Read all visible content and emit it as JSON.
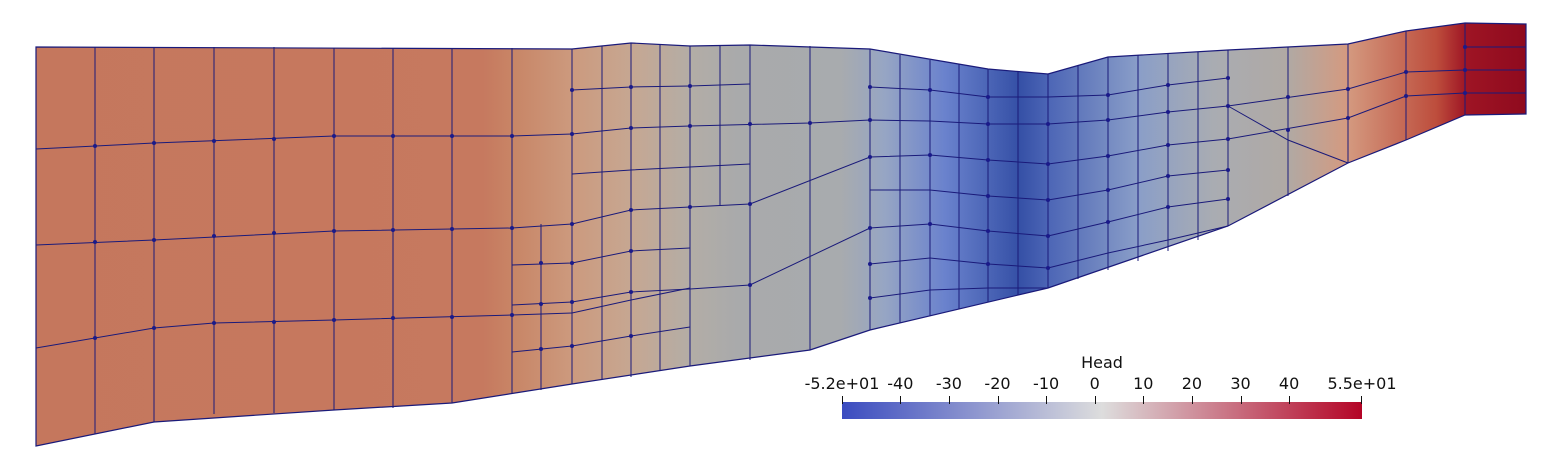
{
  "legend": {
    "title": "Head",
    "range": [
      -52,
      55
    ],
    "colors": [
      "#3b4cc0",
      "#dddddd",
      "#b40426"
    ],
    "ticks": [
      {
        "value": -52,
        "label": "-5.2e+01"
      },
      {
        "value": -40,
        "label": "-40"
      },
      {
        "value": -30,
        "label": "-30"
      },
      {
        "value": -20,
        "label": "-20"
      },
      {
        "value": -10,
        "label": "-10"
      },
      {
        "value": 0,
        "label": "0"
      },
      {
        "value": 10,
        "label": "10"
      },
      {
        "value": 20,
        "label": "20"
      },
      {
        "value": 30,
        "label": "30"
      },
      {
        "value": 40,
        "label": "40"
      },
      {
        "value": 55,
        "label": "5.5e+01"
      }
    ]
  },
  "mesh": {
    "edge_color": "#1a1a7a",
    "node_color": "#1a1a8a"
  }
}
